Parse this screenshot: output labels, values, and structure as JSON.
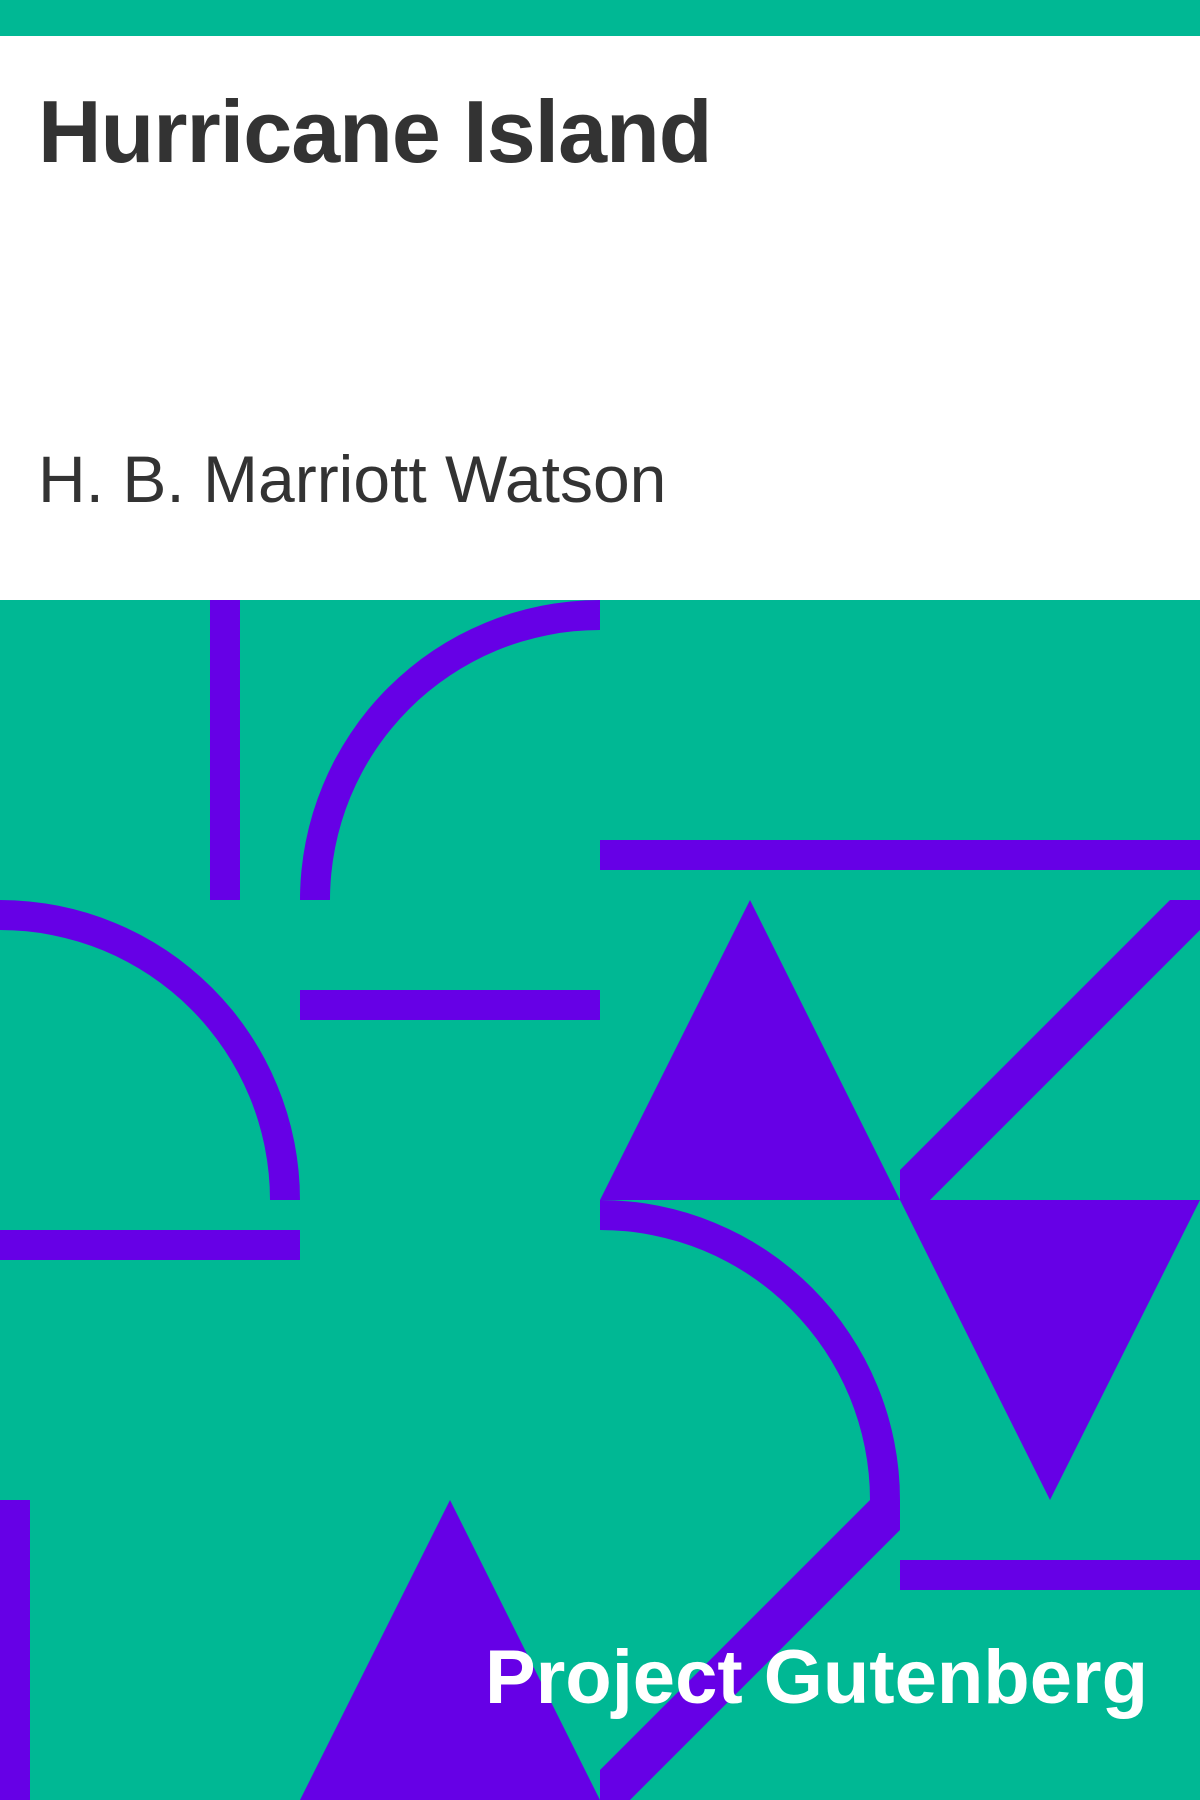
{
  "cover": {
    "title": "Hurricane Island",
    "author": "H. B. Marriott Watson",
    "publisher": "Project Gutenberg"
  },
  "colors": {
    "accent": "#00b894",
    "pattern": "#6600e6",
    "text": "#333333",
    "background": "#ffffff"
  }
}
